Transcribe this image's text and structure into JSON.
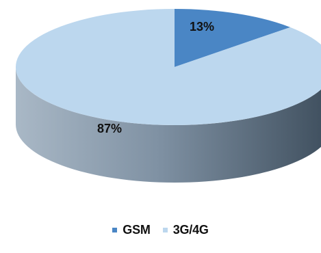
{
  "chart_data": {
    "type": "pie",
    "title": "",
    "slices": [
      {
        "name": "GSM",
        "value": 13,
        "label": "13%",
        "color": "#4a86c5"
      },
      {
        "name": "3G/4G",
        "value": 87,
        "label": "87%",
        "color": "#bcd7ee"
      }
    ],
    "legend_position": "bottom",
    "style": "3d"
  }
}
